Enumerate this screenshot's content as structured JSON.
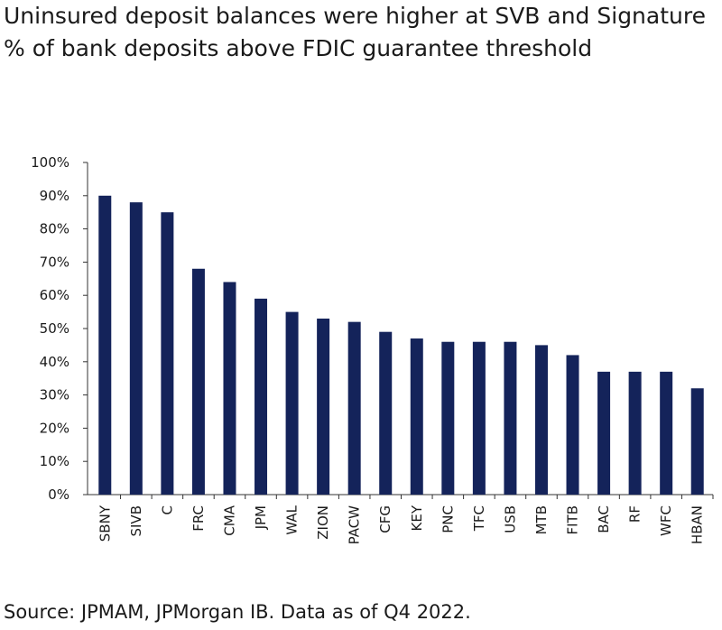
{
  "chart_data": {
    "type": "bar",
    "title": "Uninsured deposit balances were higher at SVB and Signature",
    "subtitle": "% of bank deposits above FDIC guarantee threshold",
    "source": "Source: JPMAM, JPMorgan IB. Data as of Q4 2022.",
    "categories": [
      "SBNY",
      "SIVB",
      "C",
      "FRC",
      "CMA",
      "JPM",
      "WAL",
      "ZION",
      "PACW",
      "CFG",
      "KEY",
      "PNC",
      "TFC",
      "USB",
      "MTB",
      "FITB",
      "BAC",
      "RF",
      "WFC",
      "HBAN"
    ],
    "values": [
      90,
      88,
      85,
      68,
      64,
      59,
      55,
      53,
      52,
      49,
      47,
      46,
      46,
      46,
      45,
      42,
      37,
      37,
      37,
      32
    ],
    "ylim": [
      0,
      100
    ],
    "yticks": [
      "0%",
      "10%",
      "20%",
      "30%",
      "40%",
      "50%",
      "60%",
      "70%",
      "80%",
      "90%",
      "100%"
    ],
    "bar_color": "#14235a",
    "grid": false
  }
}
